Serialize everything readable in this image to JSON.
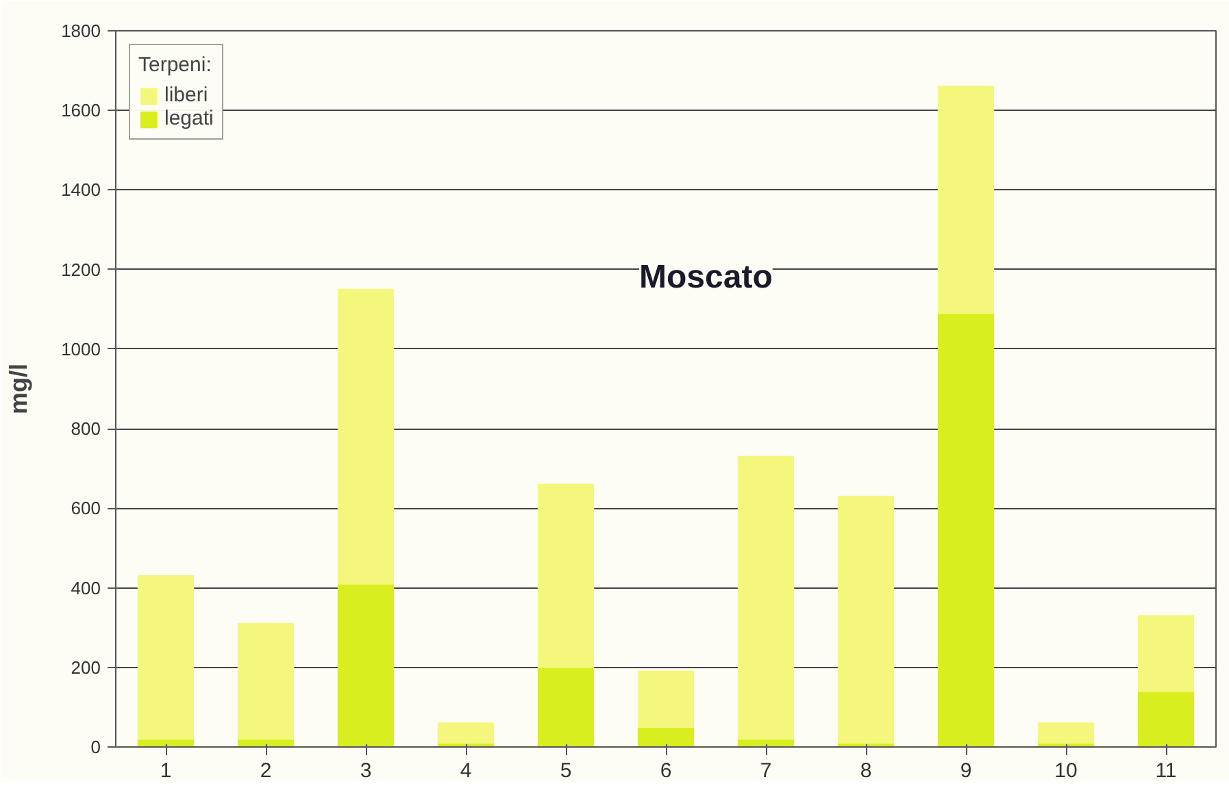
{
  "chart_data": {
    "type": "bar",
    "title": "Moscato",
    "ylabel": "mg/l",
    "legend_title": "Terpeni:",
    "categories": [
      "1",
      "2",
      "3",
      "4",
      "5",
      "6",
      "7",
      "8",
      "9",
      "10",
      "11"
    ],
    "stacked": true,
    "series": [
      {
        "name": "legati",
        "color": "#d9ee1e",
        "values": [
          20,
          20,
          410,
          10,
          200,
          50,
          20,
          10,
          1090,
          10,
          140
        ]
      },
      {
        "name": "liberi",
        "color": "#f4f77c",
        "values": [
          410,
          290,
          740,
          50,
          460,
          140,
          710,
          620,
          570,
          50,
          190
        ]
      }
    ],
    "ylim": [
      0,
      1800
    ],
    "yticks": [
      0,
      200,
      400,
      600,
      800,
      1000,
      1200,
      1400,
      1600,
      1800
    ],
    "grid": "y",
    "legend": "top left"
  }
}
